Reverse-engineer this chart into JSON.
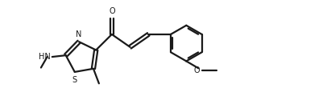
{
  "bg_color": "#ffffff",
  "line_color": "#1a1a1a",
  "line_width": 1.6,
  "fig_width": 4.11,
  "fig_height": 1.4,
  "dpi": 100,
  "xlim": [
    0,
    10.5
  ],
  "ylim": [
    0,
    3.6
  ]
}
